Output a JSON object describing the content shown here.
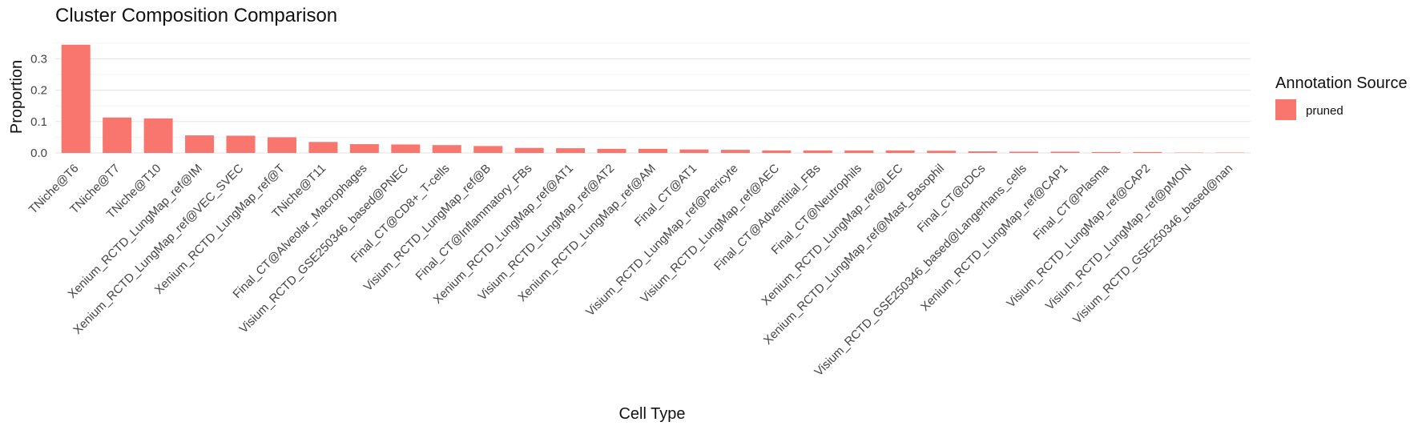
{
  "chart_data": {
    "type": "bar",
    "title": "Cluster Composition Comparison",
    "xlabel": "Cell Type",
    "ylabel": "Proportion",
    "ylim": [
      0,
      0.36
    ],
    "yticks": [
      0.0,
      0.1,
      0.2,
      0.3
    ],
    "ytick_labels": [
      "0.0",
      "0.1",
      "0.2",
      "0.3"
    ],
    "grid": true,
    "legend": {
      "title": "Annotation Source",
      "position": "right",
      "entries": [
        {
          "label": "pruned",
          "color": "#F8766D"
        }
      ]
    },
    "categories": [
      "TNiche@T6",
      "TNiche@T7",
      "TNiche@T10",
      "Xenium_RCTD_LungMap_ref@IM",
      "Xenium_RCTD_LungMap_ref@VEC_SVEC",
      "Xenium_RCTD_LungMap_ref@T",
      "TNiche@T11",
      "Final_CT@Alveolar_Macrophages",
      "Visium_RCTD_GSE250346_based@PNEC",
      "Final_CT@CD8+_T-cells",
      "Visium_RCTD_LungMap_ref@B",
      "Final_CT@Inflammatory_FBs",
      "Xenium_RCTD_LungMap_ref@AT1",
      "Visium_RCTD_LungMap_ref@AT2",
      "Xenium_RCTD_LungMap_ref@AM",
      "Final_CT@AT1",
      "Visium_RCTD_LungMap_ref@Pericyte",
      "Visium_RCTD_LungMap_ref@AEC",
      "Final_CT@Adventitial_FBs",
      "Final_CT@Neutrophils",
      "Xenium_RCTD_LungMap_ref@LEC",
      "Xenium_RCTD_LungMap_ref@Mast_Basophil",
      "Final_CT@cDCs",
      "Visium_RCTD_GSE250346_based@Langerhans_cells",
      "Xenium_RCTD_LungMap_ref@CAP1",
      "Final_CT@Plasma",
      "Visium_RCTD_LungMap_ref@CAP2",
      "Visium_RCTD_LungMap_ref@pMON",
      "Visium_RCTD_GSE250346_based@nan"
    ],
    "series": [
      {
        "name": "pruned",
        "color": "#F8766D",
        "values": [
          0.345,
          0.113,
          0.11,
          0.056,
          0.055,
          0.05,
          0.035,
          0.028,
          0.027,
          0.025,
          0.022,
          0.016,
          0.015,
          0.013,
          0.013,
          0.011,
          0.01,
          0.008,
          0.008,
          0.008,
          0.008,
          0.007,
          0.005,
          0.004,
          0.004,
          0.003,
          0.003,
          0.001,
          0.001
        ]
      }
    ]
  }
}
